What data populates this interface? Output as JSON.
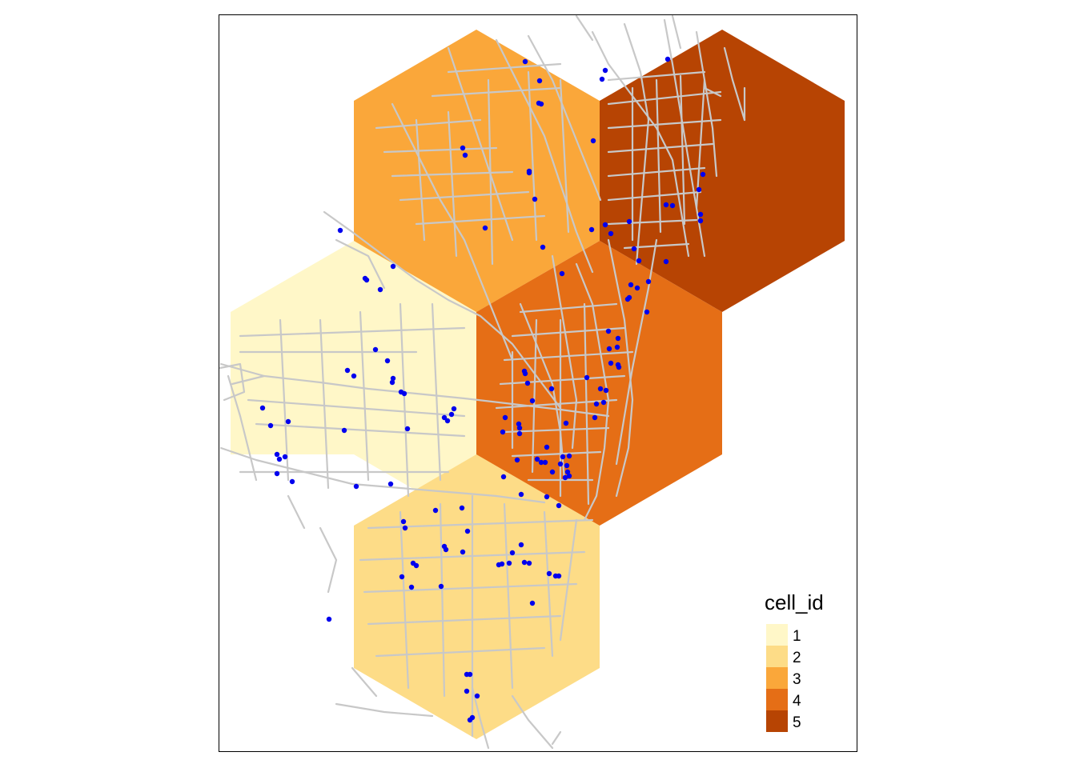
{
  "map": {
    "cells": [
      {
        "id": 1,
        "color": "#FFF7C8"
      },
      {
        "id": 2,
        "color": "#FDDC87"
      },
      {
        "id": 3,
        "color": "#FAA73A"
      },
      {
        "id": 4,
        "color": "#E56E16"
      },
      {
        "id": 5,
        "color": "#B74403"
      }
    ],
    "road_color": "#C8C8C8",
    "point_color": "#0000EE",
    "frame_color": "#000000"
  },
  "legend": {
    "title": "cell_id",
    "items": [
      {
        "label": "1",
        "color": "#FFF7C8"
      },
      {
        "label": "2",
        "color": "#FDDC87"
      },
      {
        "label": "3",
        "color": "#FAA73A"
      },
      {
        "label": "4",
        "color": "#E56E16"
      },
      {
        "label": "5",
        "color": "#B74403"
      }
    ]
  }
}
